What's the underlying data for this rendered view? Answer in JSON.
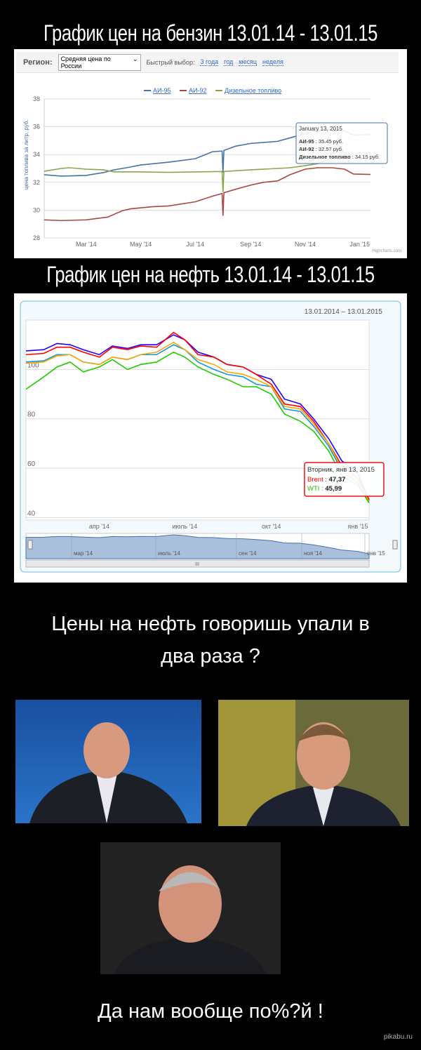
{
  "titles": {
    "gas": "График цен на бензин 13.01.14 - 13.01.15",
    "oil": "График цен на нефть 13.01.14 - 13.01.15"
  },
  "gas_toolbar": {
    "region_label": "Регион:",
    "region_value": "Средняя цена по России",
    "quick_label": "Быстрый выбор:",
    "quick_links": [
      "3 года",
      "год",
      "месяц",
      "неделя"
    ]
  },
  "chart_data": [
    {
      "type": "line",
      "title": "",
      "ylabel": "цена топлива за литр, руб.",
      "ylim": [
        28,
        38
      ],
      "yticks": [
        28,
        30,
        32,
        34,
        36,
        38
      ],
      "xticks": [
        {
          "date": "2014-03-01",
          "label": "Mar '14"
        },
        {
          "date": "2014-05-01",
          "label": "May '14"
        },
        {
          "date": "2014-07-01",
          "label": "Jul '14"
        },
        {
          "date": "2014-09-01",
          "label": "Sep '14"
        },
        {
          "date": "2014-11-01",
          "label": "Nov '14"
        },
        {
          "date": "2015-01-01",
          "label": "Jan '15"
        }
      ],
      "legend": "top",
      "grid": true,
      "credit": "Highcharts.com",
      "tooltip": {
        "date": "January 13, 2015",
        "rows": [
          {
            "name": "АИ-95",
            "value": "35.45 руб."
          },
          {
            "name": "АИ-92",
            "value": "32.57 руб."
          },
          {
            "name": "Дизельное топливо",
            "value": "34.15 руб."
          }
        ]
      },
      "series": [
        {
          "name": "АИ-95",
          "color": "#4572a7",
          "x": [
            "2014-01-13",
            "2014-02-01",
            "2014-03-01",
            "2014-03-20",
            "2014-04-01",
            "2014-04-15",
            "2014-05-01",
            "2014-06-01",
            "2014-07-01",
            "2014-07-20",
            "2014-07-31",
            "2014-08-01",
            "2014-08-02",
            "2014-08-15",
            "2014-09-01",
            "2014-10-01",
            "2014-10-15",
            "2014-11-01",
            "2014-11-15",
            "2014-12-01",
            "2014-12-15",
            "2014-12-25",
            "2015-01-13"
          ],
          "values": [
            32.55,
            32.45,
            32.5,
            32.7,
            32.9,
            33.05,
            33.25,
            33.45,
            33.7,
            34.2,
            34.25,
            32.7,
            34.3,
            34.6,
            34.8,
            34.95,
            35.2,
            35.5,
            35.75,
            35.8,
            35.7,
            35.4,
            35.45
          ]
        },
        {
          "name": "АИ-92",
          "color": "#aa4643",
          "x": [
            "2014-01-13",
            "2014-02-01",
            "2014-03-01",
            "2014-03-25",
            "2014-04-10",
            "2014-04-20",
            "2014-05-15",
            "2014-06-01",
            "2014-07-01",
            "2014-07-20",
            "2014-07-31",
            "2014-08-01",
            "2014-08-02",
            "2014-08-15",
            "2014-09-01",
            "2014-09-15",
            "2014-10-01",
            "2014-10-15",
            "2014-11-01",
            "2014-11-15",
            "2014-12-01",
            "2014-12-15",
            "2014-12-25",
            "2015-01-13"
          ],
          "values": [
            29.3,
            29.25,
            29.3,
            29.5,
            29.95,
            30.1,
            30.25,
            30.3,
            30.6,
            31.0,
            31.2,
            29.6,
            31.25,
            31.5,
            31.8,
            32.0,
            32.1,
            32.55,
            32.95,
            33.05,
            33.05,
            32.95,
            32.6,
            32.57
          ]
        },
        {
          "name": "Дизельное топливо",
          "color": "#89a54e",
          "x": [
            "2014-01-13",
            "2014-02-01",
            "2014-02-10",
            "2014-03-01",
            "2014-03-20",
            "2014-04-01",
            "2014-05-01",
            "2014-06-01",
            "2014-07-01",
            "2014-07-31",
            "2014-08-01",
            "2014-08-02",
            "2014-09-01",
            "2014-10-01",
            "2014-10-15",
            "2014-11-01",
            "2014-11-15",
            "2014-12-01",
            "2014-12-15",
            "2015-01-01",
            "2015-01-13"
          ],
          "values": [
            32.8,
            33.0,
            33.05,
            32.95,
            32.9,
            32.75,
            32.75,
            32.72,
            32.75,
            32.78,
            31.3,
            32.78,
            32.9,
            33.0,
            33.05,
            33.2,
            33.35,
            33.8,
            34.0,
            34.1,
            34.15
          ]
        }
      ]
    },
    {
      "type": "line",
      "title": "",
      "ylim": [
        39,
        120
      ],
      "yticks": [
        40,
        60,
        80,
        100
      ],
      "date_range": [
        "13.01.2014",
        "–",
        "13.01.2015"
      ],
      "xticks": [
        {
          "date": "2014-04-01",
          "label": "апр '14"
        },
        {
          "date": "2014-07-01",
          "label": "июль '14"
        },
        {
          "date": "2014-10-01",
          "label": "окт '14"
        },
        {
          "date": "2015-01-01",
          "label": "янв '15"
        }
      ],
      "navigator_ticks": [
        "мар '14",
        "июль '14",
        "сен '14",
        "ноя '14",
        "янв '15"
      ],
      "grid": true,
      "tooltip": {
        "date": "Вторник, янв 13, 2015",
        "rows": [
          {
            "name": "Brent",
            "value": "47,37",
            "color": "#ff0000"
          },
          {
            "name": "WTI",
            "value": "45,99",
            "color": "#22bb00"
          }
        ]
      },
      "x": [
        "2014-01-13",
        "2014-02-01",
        "2014-02-15",
        "2014-03-01",
        "2014-03-15",
        "2014-04-01",
        "2014-04-15",
        "2014-05-01",
        "2014-05-15",
        "2014-06-01",
        "2014-06-19",
        "2014-07-01",
        "2014-07-15",
        "2014-08-01",
        "2014-08-15",
        "2014-09-01",
        "2014-09-15",
        "2014-10-01",
        "2014-10-15",
        "2014-11-01",
        "2014-11-15",
        "2014-12-01",
        "2014-12-15",
        "2015-01-01",
        "2015-01-13"
      ],
      "series": [
        {
          "color": "#2200ff",
          "values": [
            107.5,
            108,
            110.5,
            110,
            108,
            106,
            109.5,
            108.5,
            110,
            110,
            114,
            112,
            107,
            105,
            102,
            101,
            98,
            96,
            88,
            86,
            80,
            72,
            63,
            58,
            47
          ]
        },
        {
          "name": "Brent",
          "color": "#ff0000",
          "values": [
            106,
            106.5,
            109,
            109,
            107,
            105,
            109,
            108,
            109.5,
            109,
            115,
            112,
            106,
            105,
            102,
            101,
            98,
            94,
            86,
            85,
            79,
            70,
            61,
            56,
            47.37
          ]
        },
        {
          "color": "#1199dd",
          "values": [
            103,
            103.5,
            106,
            106,
            103,
            102,
            105,
            104,
            106,
            106,
            110,
            108,
            103,
            100,
            98,
            97,
            94,
            93,
            84,
            83,
            77,
            69,
            59,
            54,
            46
          ]
        },
        {
          "color": "#ffa500",
          "values": [
            102.5,
            103,
            105.5,
            106,
            103,
            102,
            105,
            104,
            106,
            107,
            111,
            108,
            104,
            102,
            99,
            98,
            96,
            93,
            85,
            84,
            78,
            70,
            60,
            55,
            46.5
          ]
        },
        {
          "name": "WTI",
          "color": "#22cc00",
          "values": [
            92,
            97,
            101,
            103,
            99,
            101,
            104,
            100,
            102,
            103,
            107,
            105,
            101,
            98,
            96,
            93,
            93,
            90,
            82,
            79,
            75,
            67,
            57,
            53,
            45.99
          ]
        }
      ]
    }
  ],
  "captions": {
    "question": "Цены на нефть говоришь упали в два раза ?",
    "answer": "Да нам вообще по%?й !"
  },
  "watermark": "pikabu.ru"
}
